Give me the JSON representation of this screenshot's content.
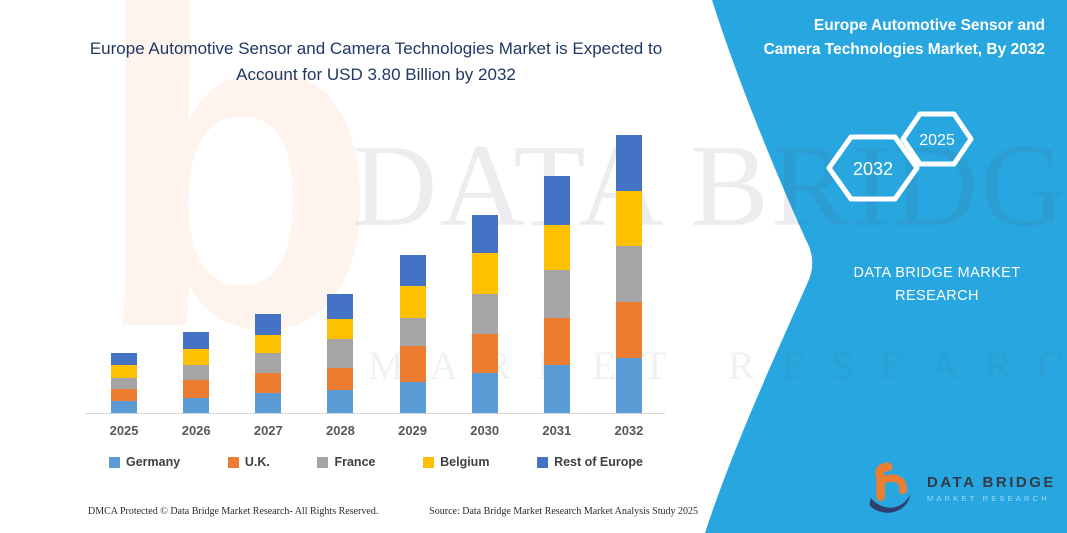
{
  "header": {
    "title_line1": "Europe Automotive Sensor and Camera Technologies Market is Expected to",
    "title_line2": "Account for USD 3.80 Billion by 2032"
  },
  "chart_data": {
    "type": "bar",
    "stacked": true,
    "title": "Europe Automotive Sensor and Camera Technologies Market is Expected to Account for USD 3.80 Billion by 2032",
    "unit": "USD Billion",
    "categories": [
      "2025",
      "2026",
      "2027",
      "2028",
      "2029",
      "2030",
      "2031",
      "2032"
    ],
    "series": [
      {
        "name": "Germany",
        "color": "#5B9BD5",
        "values": [
          0.17,
          0.2,
          0.27,
          0.32,
          0.42,
          0.54,
          0.66,
          0.75
        ]
      },
      {
        "name": "U.K.",
        "color": "#ED7D31",
        "values": [
          0.17,
          0.24,
          0.27,
          0.3,
          0.49,
          0.53,
          0.64,
          0.77
        ]
      },
      {
        "name": "France",
        "color": "#A5A5A5",
        "values": [
          0.15,
          0.2,
          0.27,
          0.39,
          0.38,
          0.55,
          0.66,
          0.76
        ]
      },
      {
        "name": "Belgium",
        "color": "#FFC000",
        "values": [
          0.18,
          0.22,
          0.25,
          0.27,
          0.44,
          0.56,
          0.61,
          0.75
        ]
      },
      {
        "name": "Rest of Europe",
        "color": "#4472C4",
        "values": [
          0.16,
          0.23,
          0.29,
          0.34,
          0.42,
          0.52,
          0.67,
          0.77
        ]
      }
    ],
    "totals": [
      0.83,
      1.09,
      1.35,
      1.62,
      2.15,
      2.7,
      3.24,
      3.8
    ],
    "ylim": [
      0,
      3.9
    ],
    "grid": false,
    "y_axis_visible": false,
    "legend_position": "bottom"
  },
  "sidebar": {
    "accent_color": "#27A6DF",
    "title": "Europe Automotive Sensor and Camera Technologies Market, By 2032",
    "hexagon_large": "2032",
    "hexagon_small": "2025",
    "brand": "DATA BRIDGE MARKET RESEARCH"
  },
  "watermark": {
    "line1": "DATA BRIDGE",
    "line2": "MARKET RESEARCH",
    "logo_letter": "b"
  },
  "logo": {
    "name": "DATA BRIDGE",
    "sub": "MARKET RESEARCH"
  },
  "footer": {
    "dmca": "DMCA Protected © Data Bridge Market Research-  All Rights Reserved.",
    "source": "Source: Data Bridge Market Research  Market Analysis Study 2025"
  }
}
